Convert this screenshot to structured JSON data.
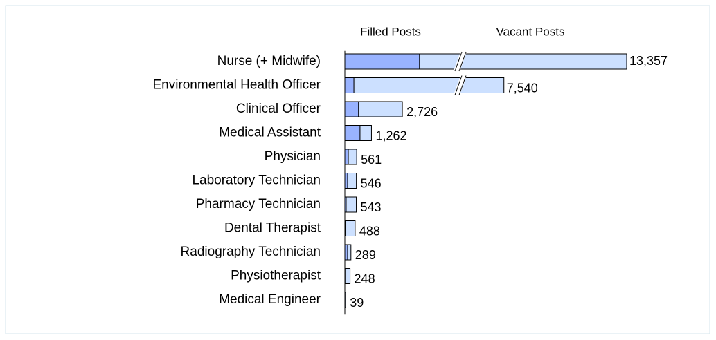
{
  "chart_data": {
    "type": "bar",
    "orientation": "horizontal",
    "stacked": true,
    "categories": [
      "Nurse (+ Midwife)",
      "Environmental Health Officer",
      "Clinical Officer",
      "Medical Assistant",
      "Physician",
      "Laboratory Technician",
      "Pharmacy Technician",
      "Dental Therapist",
      "Radiography Technician",
      "Physiotherapist",
      "Medical Engineer"
    ],
    "series": [
      {
        "name": "Filled Posts",
        "color": "#99b3ff",
        "values": [
          3540,
          430,
          650,
          720,
          165,
          130,
          65,
          35,
          130,
          10,
          0
        ]
      },
      {
        "name": "Vacant Posts",
        "color": "#cce0ff",
        "values": [
          9817,
          7110,
          2076,
          542,
          396,
          416,
          478,
          453,
          159,
          238,
          39
        ]
      }
    ],
    "totals": [
      13357,
      7540,
      2726,
      1262,
      561,
      546,
      543,
      488,
      289,
      248,
      39
    ],
    "total_labels": [
      "13,357",
      "7,540",
      "2,726",
      "1,262",
      "561",
      "546",
      "543",
      "488",
      "289",
      "248",
      "39"
    ]
  }
}
